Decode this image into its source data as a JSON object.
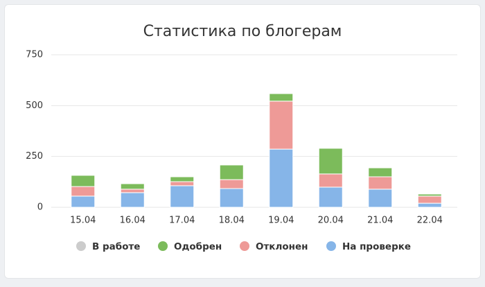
{
  "chart_data": {
    "type": "stacked-bar",
    "title": "Статистика по блогерам",
    "categories": [
      "15.04",
      "16.04",
      "17.04",
      "18.04",
      "19.04",
      "20.04",
      "21.04",
      "22.04"
    ],
    "series": [
      {
        "name": "В работе",
        "color": "#cccccc",
        "hidden": true,
        "values": [
          null,
          null,
          null,
          null,
          null,
          null,
          null,
          null
        ]
      },
      {
        "name": "Одобрен",
        "color": "#7cbb5b",
        "values": [
          55,
          27,
          24,
          72,
          37,
          126,
          44,
          10
        ]
      },
      {
        "name": "Отклонен",
        "color": "#ee9a97",
        "values": [
          47,
          17,
          20,
          44,
          236,
          65,
          61,
          35
        ]
      },
      {
        "name": "На проверке",
        "color": "#86b5e8",
        "values": [
          55,
          72,
          106,
          92,
          286,
          99,
          89,
          20
        ]
      }
    ],
    "ylim": [
      0,
      750
    ],
    "yticks": [
      0,
      250,
      500,
      750
    ],
    "grid": true,
    "legend": "bottom"
  }
}
